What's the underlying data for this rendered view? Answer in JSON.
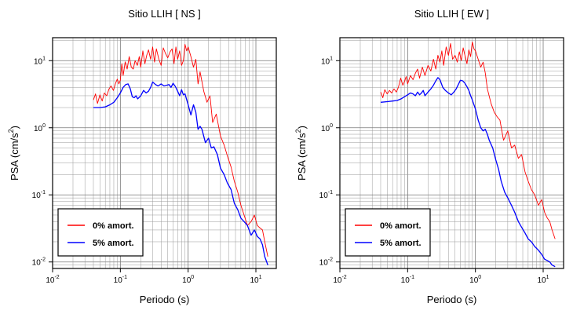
{
  "chart_data": [
    {
      "type": "line",
      "title": "Sitio LLIH [ NS ]",
      "xlabel": "Periodo (s)",
      "ylabel_base": "PSA (cm/s",
      "ylabel_exp": "2",
      "ylabel_close": ")",
      "x_scale": "log",
      "y_scale": "log",
      "xlim": [
        0.01,
        20
      ],
      "ylim": [
        0.008,
        22
      ],
      "grid": true,
      "legend": "bottom-left",
      "x_ticks": [
        {
          "value": 0.01,
          "base": "10",
          "exp": "-2"
        },
        {
          "value": 0.1,
          "base": "10",
          "exp": "-1"
        },
        {
          "value": 1,
          "base": "10",
          "exp": "0"
        },
        {
          "value": 10,
          "base": "10",
          "exp": "1"
        }
      ],
      "y_ticks": [
        {
          "value": 0.01,
          "base": "10",
          "exp": "-2"
        },
        {
          "value": 0.1,
          "base": "10",
          "exp": "-1"
        },
        {
          "value": 1,
          "base": "10",
          "exp": "0"
        },
        {
          "value": 10,
          "base": "10",
          "exp": "1"
        }
      ],
      "series": [
        {
          "name": "0% amort.",
          "color": "#ff0000",
          "x": [
            0.04,
            0.043,
            0.046,
            0.05,
            0.054,
            0.058,
            0.063,
            0.068,
            0.073,
            0.079,
            0.085,
            0.09,
            0.095,
            0.1,
            0.105,
            0.11,
            0.118,
            0.126,
            0.135,
            0.145,
            0.155,
            0.165,
            0.178,
            0.19,
            0.2,
            0.215,
            0.23,
            0.245,
            0.26,
            0.28,
            0.3,
            0.32,
            0.34,
            0.37,
            0.4,
            0.43,
            0.46,
            0.5,
            0.54,
            0.58,
            0.62,
            0.66,
            0.7,
            0.75,
            0.8,
            0.85,
            0.9,
            0.95,
            1.0,
            1.1,
            1.2,
            1.3,
            1.4,
            1.5,
            1.7,
            1.9,
            2.1,
            2.3,
            2.6,
            3.0,
            3.4,
            3.8,
            4.3,
            4.8,
            5.4,
            6.0,
            6.7,
            7.5,
            8.5,
            9.5,
            10.5,
            11.5,
            12.5,
            13.5,
            15.0
          ],
          "y": [
            2.6,
            3.2,
            2.3,
            3.1,
            2.5,
            3.3,
            3.0,
            3.8,
            4.2,
            3.6,
            4.6,
            5.3,
            4.5,
            5.1,
            9.0,
            6.0,
            9.6,
            7.5,
            11.5,
            8.0,
            7.5,
            10.0,
            8.5,
            11.5,
            8.0,
            14.0,
            9.0,
            12.0,
            14.5,
            10.5,
            16.0,
            9.5,
            15.0,
            10.5,
            8.5,
            15.5,
            13.0,
            11.0,
            13.5,
            15.0,
            9.0,
            16.0,
            10.5,
            14.0,
            8.5,
            10.0,
            17.5,
            14.0,
            16.0,
            11.5,
            8.0,
            10.5,
            4.5,
            6.8,
            3.5,
            2.4,
            3.0,
            1.2,
            1.6,
            0.75,
            0.55,
            0.38,
            0.26,
            0.16,
            0.11,
            0.07,
            0.05,
            0.035,
            0.04,
            0.05,
            0.035,
            0.032,
            0.03,
            0.02,
            0.012
          ]
        },
        {
          "name": "5% amort.",
          "color": "#0000ff",
          "x": [
            0.04,
            0.05,
            0.06,
            0.07,
            0.08,
            0.09,
            0.1,
            0.11,
            0.12,
            0.13,
            0.14,
            0.15,
            0.16,
            0.17,
            0.18,
            0.2,
            0.22,
            0.24,
            0.26,
            0.28,
            0.3,
            0.33,
            0.36,
            0.4,
            0.44,
            0.48,
            0.52,
            0.56,
            0.6,
            0.65,
            0.7,
            0.75,
            0.8,
            0.85,
            0.9,
            1.0,
            1.1,
            1.2,
            1.3,
            1.4,
            1.5,
            1.6,
            1.8,
            2.0,
            2.2,
            2.4,
            2.7,
            3.0,
            3.4,
            3.8,
            4.3,
            4.8,
            5.4,
            6.0,
            6.7,
            7.5,
            8.5,
            9.5,
            10.5,
            11.5,
            12.5,
            13.5,
            15.0
          ],
          "y": [
            2.0,
            2.0,
            2.05,
            2.2,
            2.4,
            2.8,
            3.3,
            4.0,
            4.4,
            4.5,
            3.8,
            2.9,
            2.8,
            3.0,
            2.7,
            3.0,
            3.6,
            3.3,
            3.5,
            4.0,
            4.8,
            4.4,
            4.2,
            4.5,
            4.2,
            4.3,
            4.4,
            4.0,
            4.6,
            4.1,
            3.5,
            3.0,
            3.7,
            3.1,
            3.2,
            2.2,
            1.55,
            2.2,
            1.7,
            0.95,
            1.05,
            0.95,
            0.6,
            0.7,
            0.5,
            0.52,
            0.4,
            0.25,
            0.2,
            0.15,
            0.12,
            0.075,
            0.06,
            0.045,
            0.04,
            0.035,
            0.025,
            0.03,
            0.024,
            0.022,
            0.018,
            0.012,
            0.009
          ]
        }
      ]
    },
    {
      "type": "line",
      "title": "Sitio LLIH [ EW ]",
      "xlabel": "Periodo (s)",
      "ylabel_base": "PSA (cm/s",
      "ylabel_exp": "2",
      "ylabel_close": ")",
      "x_scale": "log",
      "y_scale": "log",
      "xlim": [
        0.01,
        20
      ],
      "ylim": [
        0.008,
        22
      ],
      "grid": true,
      "legend": "bottom-left",
      "x_ticks": [
        {
          "value": 0.01,
          "base": "10",
          "exp": "-2"
        },
        {
          "value": 0.1,
          "base": "10",
          "exp": "-1"
        },
        {
          "value": 1,
          "base": "10",
          "exp": "0"
        },
        {
          "value": 10,
          "base": "10",
          "exp": "1"
        }
      ],
      "y_ticks": [
        {
          "value": 0.01,
          "base": "10",
          "exp": "-2"
        },
        {
          "value": 0.1,
          "base": "10",
          "exp": "-1"
        },
        {
          "value": 1,
          "base": "10",
          "exp": "0"
        },
        {
          "value": 10,
          "base": "10",
          "exp": "1"
        }
      ],
      "series": [
        {
          "name": "0% amort.",
          "color": "#ff0000",
          "x": [
            0.04,
            0.043,
            0.046,
            0.05,
            0.054,
            0.058,
            0.063,
            0.068,
            0.073,
            0.079,
            0.085,
            0.09,
            0.095,
            0.1,
            0.11,
            0.12,
            0.13,
            0.14,
            0.15,
            0.165,
            0.18,
            0.2,
            0.22,
            0.24,
            0.26,
            0.28,
            0.3,
            0.32,
            0.34,
            0.37,
            0.4,
            0.43,
            0.46,
            0.5,
            0.54,
            0.58,
            0.62,
            0.66,
            0.7,
            0.75,
            0.8,
            0.85,
            0.9,
            0.95,
            1.0,
            1.1,
            1.2,
            1.3,
            1.4,
            1.5,
            1.7,
            1.9,
            2.1,
            2.3,
            2.6,
            3.0,
            3.4,
            3.8,
            4.3,
            4.8,
            5.4,
            6.0,
            6.7,
            7.5,
            8.5,
            9.5,
            10.5,
            11.5,
            12.5,
            13.5,
            15.0
          ],
          "y": [
            3.4,
            2.8,
            3.7,
            3.2,
            3.6,
            3.3,
            3.8,
            3.4,
            4.0,
            5.5,
            4.3,
            4.9,
            5.8,
            4.5,
            6.0,
            5.2,
            6.5,
            7.5,
            5.5,
            8.0,
            6.0,
            8.5,
            7.0,
            10.5,
            7.5,
            12.0,
            9.5,
            14.0,
            8.5,
            16.0,
            12.0,
            18.0,
            10.5,
            12.0,
            9.5,
            13.5,
            10.0,
            15.5,
            12.0,
            9.0,
            14.5,
            11.5,
            19.0,
            15.0,
            14.0,
            10.5,
            8.0,
            9.5,
            6.5,
            3.8,
            2.3,
            1.7,
            1.45,
            1.3,
            0.65,
            0.9,
            0.5,
            0.55,
            0.35,
            0.4,
            0.22,
            0.16,
            0.12,
            0.1,
            0.07,
            0.085,
            0.055,
            0.045,
            0.04,
            0.03,
            0.022
          ]
        },
        {
          "name": "5% amort.",
          "color": "#0000ff",
          "x": [
            0.04,
            0.05,
            0.06,
            0.07,
            0.08,
            0.09,
            0.1,
            0.11,
            0.12,
            0.13,
            0.14,
            0.15,
            0.16,
            0.17,
            0.18,
            0.2,
            0.22,
            0.24,
            0.26,
            0.28,
            0.3,
            0.33,
            0.36,
            0.4,
            0.44,
            0.48,
            0.52,
            0.56,
            0.6,
            0.65,
            0.7,
            0.75,
            0.8,
            0.85,
            0.9,
            1.0,
            1.1,
            1.2,
            1.3,
            1.4,
            1.5,
            1.6,
            1.8,
            2.0,
            2.2,
            2.4,
            2.7,
            3.0,
            3.4,
            3.8,
            4.3,
            4.8,
            5.4,
            6.0,
            6.7,
            7.5,
            8.5,
            9.5,
            10.5,
            11.5,
            12.5,
            13.5,
            15.0
          ],
          "y": [
            2.4,
            2.45,
            2.5,
            2.55,
            2.7,
            2.9,
            3.1,
            3.3,
            3.2,
            3.0,
            3.4,
            3.1,
            3.3,
            3.6,
            3.0,
            3.4,
            3.8,
            4.3,
            5.0,
            5.6,
            5.2,
            4.0,
            3.6,
            3.3,
            3.1,
            3.4,
            3.8,
            4.4,
            5.1,
            5.0,
            4.6,
            4.1,
            3.6,
            3.0,
            2.6,
            1.9,
            1.3,
            1.0,
            0.9,
            0.95,
            0.8,
            0.65,
            0.5,
            0.33,
            0.24,
            0.16,
            0.11,
            0.09,
            0.07,
            0.055,
            0.04,
            0.033,
            0.027,
            0.022,
            0.02,
            0.017,
            0.015,
            0.013,
            0.011,
            0.0105,
            0.01,
            0.009,
            0.0085
          ]
        }
      ]
    }
  ]
}
